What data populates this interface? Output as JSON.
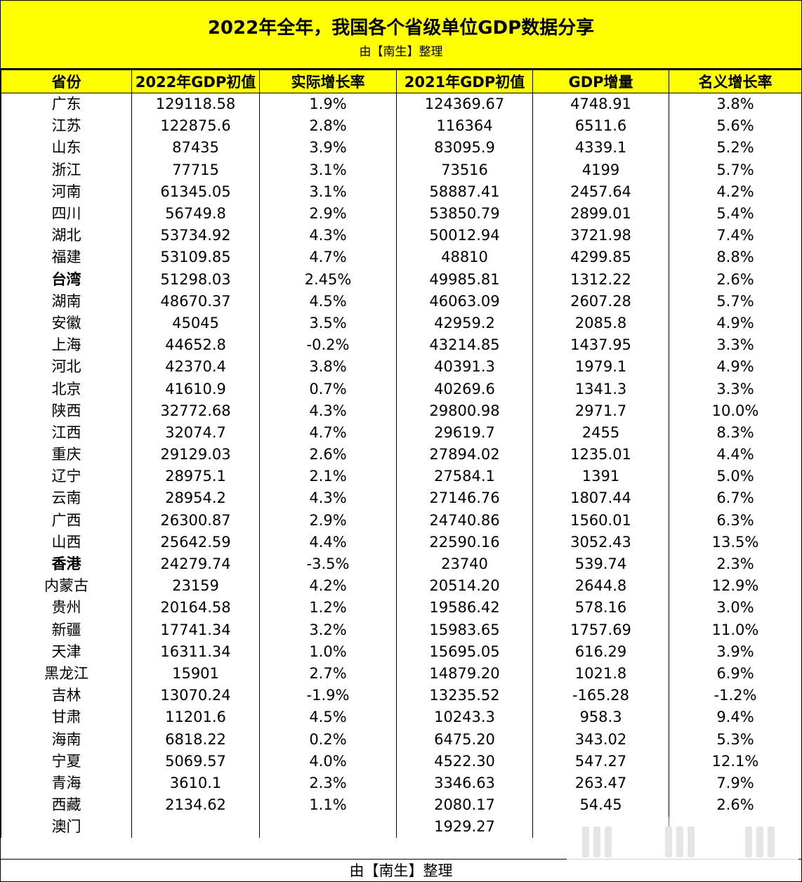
{
  "title": "2022年全年，我国各个省级单位GDP数据分享",
  "subtitle": "由【南生】整理",
  "footer": "由【南生】整理",
  "headers": [
    "省份",
    "2022年GDP初值",
    "实际增长率",
    "2021年GDP初值",
    "GDP增量",
    "名义增长率"
  ],
  "rows": [
    [
      "广东",
      "129118.58",
      "1.9%",
      "124369.67",
      "4748.91",
      "3.8%"
    ],
    [
      "江苏",
      "122875.6",
      "2.8%",
      "116364",
      "6511.6",
      "5.6%"
    ],
    [
      "山东",
      "87435",
      "3.9%",
      "83095.9",
      "4339.1",
      "5.2%"
    ],
    [
      "浙江",
      "77715",
      "3.1%",
      "73516",
      "4199",
      "5.7%"
    ],
    [
      "河南",
      "61345.05",
      "3.1%",
      "58887.41",
      "2457.64",
      "4.2%"
    ],
    [
      "四川",
      "56749.8",
      "2.9%",
      "53850.79",
      "2899.01",
      "5.4%"
    ],
    [
      "湖北",
      "53734.92",
      "4.3%",
      "50012.94",
      "3721.98",
      "7.4%"
    ],
    [
      "福建",
      "53109.85",
      "4.7%",
      "48810",
      "4299.85",
      "8.8%"
    ],
    [
      "台湾",
      "51298.03",
      "2.45%",
      "49985.81",
      "1312.22",
      "2.6%"
    ],
    [
      "湖南",
      "48670.37",
      "4.5%",
      "46063.09",
      "2607.28",
      "5.7%"
    ],
    [
      "安徽",
      "45045",
      "3.5%",
      "42959.2",
      "2085.8",
      "4.9%"
    ],
    [
      "上海",
      "44652.8",
      "-0.2%",
      "43214.85",
      "1437.95",
      "3.3%"
    ],
    [
      "河北",
      "42370.4",
      "3.8%",
      "40391.3",
      "1979.1",
      "4.9%"
    ],
    [
      "北京",
      "41610.9",
      "0.7%",
      "40269.6",
      "1341.3",
      "3.3%"
    ],
    [
      "陕西",
      "32772.68",
      "4.3%",
      "29800.98",
      "2971.7",
      "10.0%"
    ],
    [
      "江西",
      "32074.7",
      "4.7%",
      "29619.7",
      "2455",
      "8.3%"
    ],
    [
      "重庆",
      "29129.03",
      "2.6%",
      "27894.02",
      "1235.01",
      "4.4%"
    ],
    [
      "辽宁",
      "28975.1",
      "2.1%",
      "27584.1",
      "1391",
      "5.0%"
    ],
    [
      "云南",
      "28954.2",
      "4.3%",
      "27146.76",
      "1807.44",
      "6.7%"
    ],
    [
      "广西",
      "26300.87",
      "2.9%",
      "24740.86",
      "1560.01",
      "6.3%"
    ],
    [
      "山西",
      "25642.59",
      "4.4%",
      "22590.16",
      "3052.43",
      "13.5%"
    ],
    [
      "香港",
      "24279.74",
      "-3.5%",
      "23740",
      "539.74",
      "2.3%"
    ],
    [
      "内蒙古",
      "23159",
      "4.2%",
      "20514.20",
      "2644.8",
      "12.9%"
    ],
    [
      "贵州",
      "20164.58",
      "1.2%",
      "19586.42",
      "578.16",
      "3.0%"
    ],
    [
      "新疆",
      "17741.34",
      "3.2%",
      "15983.65",
      "1757.69",
      "11.0%"
    ],
    [
      "天津",
      "16311.34",
      "1.0%",
      "15695.05",
      "616.29",
      "3.9%"
    ],
    [
      "黑龙江",
      "15901",
      "2.7%",
      "14879.20",
      "1021.8",
      "6.9%"
    ],
    [
      "吉林",
      "13070.24",
      "-1.9%",
      "13235.52",
      "-165.28",
      "-1.2%"
    ],
    [
      "甘肃",
      "11201.6",
      "4.5%",
      "10243.3",
      "958.3",
      "9.4%"
    ],
    [
      "海南",
      "6818.22",
      "0.2%",
      "6475.20",
      "343.02",
      "5.3%"
    ],
    [
      "宁夏",
      "5069.57",
      "4.0%",
      "4522.30",
      "547.27",
      "12.1%"
    ],
    [
      "青海",
      "3610.1",
      "2.3%",
      "3346.63",
      "263.47",
      "7.9%"
    ],
    [
      "西藏",
      "2134.62",
      "1.1%",
      "2080.17",
      "54.45",
      "2.6%"
    ],
    [
      "澳门",
      "",
      "",
      "1929.27",
      "",
      ""
    ]
  ],
  "bold_rows": [
    "台湾",
    "香港"
  ],
  "colors": {
    "header_bg": "#ffff00",
    "border": "#000000"
  }
}
